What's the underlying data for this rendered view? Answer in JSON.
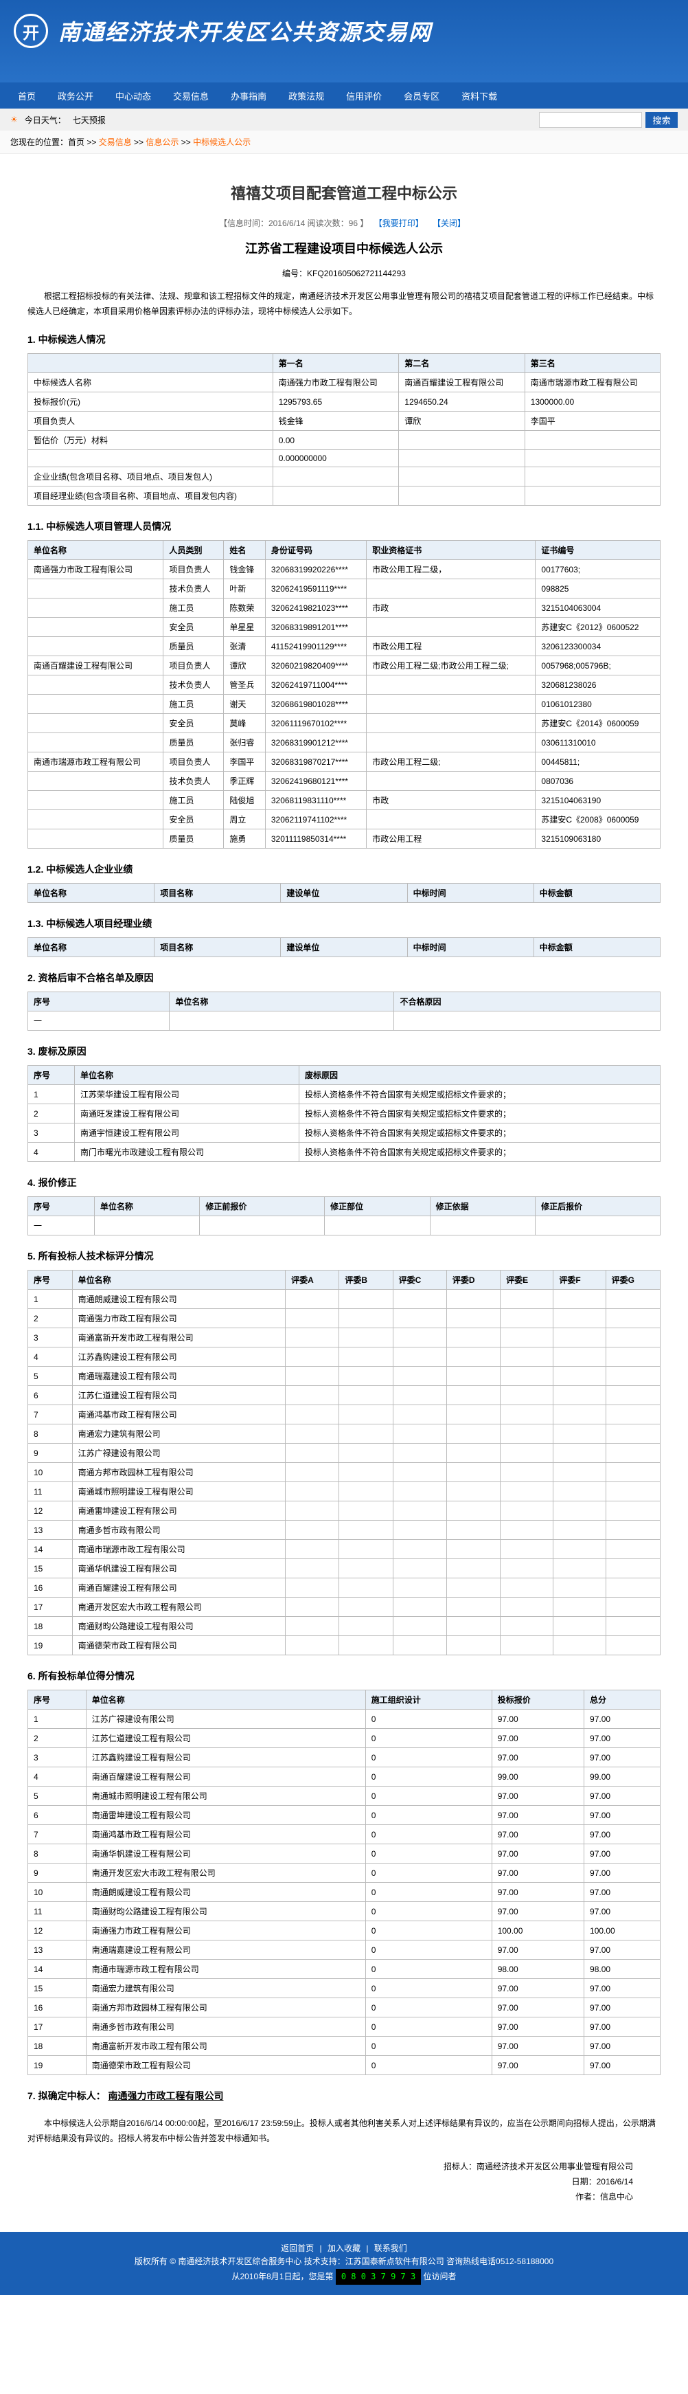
{
  "site": {
    "logo_text": "开",
    "title": "南通经济技术开发区公共资源交易网"
  },
  "nav": [
    "首页",
    "政务公开",
    "中心动态",
    "交易信息",
    "办事指南",
    "政策法规",
    "信用评价",
    "会员专区",
    "资料下载"
  ],
  "subbar": {
    "weather_label": "今日天气：",
    "forecast": "七天预报",
    "search_btn": "搜索"
  },
  "breadcrumb": {
    "prefix": "您现在的位置：首页",
    "path1": "交易信息",
    "path2": "信息公示",
    "path3": "中标候选人公示"
  },
  "article": {
    "title": "禧禧艾项目配套管道工程中标公示",
    "meta_date": "【信息时间：2016/6/14  阅读次数：96 】",
    "meta_print": "【我要打印】",
    "meta_close": "【关闭】",
    "subtitle": "江苏省工程建设项目中标候选人公示",
    "code": "编号：KFQ201605062721144293",
    "intro": "根据工程招标投标的有关法律、法规、规章和该工程招标文件的规定，南通经济技术开发区公用事业管理有限公司的禧禧艾项目配套管道工程的评标工作已经结束。中标候选人已经确定，本项目采用价格单因素评标办法的评标办法，现将中标候选人公示如下。"
  },
  "section1": {
    "title": "1. 中标候选人情况",
    "headers": [
      "",
      "第一名",
      "第二名",
      "第三名"
    ],
    "rows": [
      [
        "中标候选人名称",
        "南通强力市政工程有限公司",
        "南通百耀建设工程有限公司",
        "南通市瑞源市政工程有限公司"
      ],
      [
        "投标报价(元)",
        "1295793.65",
        "1294650.24",
        "1300000.00"
      ],
      [
        "项目负责人",
        "钱金锋",
        "谭欣",
        "李国平"
      ],
      [
        "暂估价（万元）材料",
        "0.00",
        "",
        " "
      ],
      [
        "",
        "0.000000000",
        " ",
        ""
      ],
      [
        "企业业绩(包含项目名称、项目地点、项目发包人)",
        " ",
        " ",
        " "
      ],
      [
        "项目经理业绩(包含项目名称、项目地点、项目发包内容)",
        " ",
        " ",
        " "
      ]
    ]
  },
  "section11": {
    "title": "1.1. 中标候选人项目管理人员情况",
    "headers": [
      "单位名称",
      "人员类别",
      "姓名",
      "身份证号码",
      "职业资格证书",
      "证书编号"
    ],
    "rows": [
      [
        "南通强力市政工程有限公司",
        "项目负责人",
        "钱金锋",
        "32068319920226****",
        "市政公用工程二级，",
        "00177603;"
      ],
      [
        "",
        "技术负责人",
        "叶新",
        "32062419591119****",
        "",
        "098825"
      ],
      [
        "",
        "施工员",
        "陈数荣",
        "32062419821023****",
        "市政",
        "3215104063004"
      ],
      [
        "",
        "安全员",
        "单星星",
        "32068319891201****",
        "",
        "苏建安C《2012》0600522"
      ],
      [
        "",
        "质量员",
        "张清",
        "41152419901129****",
        "市政公用工程",
        "3206123300034"
      ],
      [
        "南通百耀建设工程有限公司",
        "项目负责人",
        "谭欣",
        "32060219820409****",
        "市政公用工程二级;市政公用工程二级;",
        "0057968;005796B;"
      ],
      [
        "",
        "技术负责人",
        "管圣兵",
        "32062419711004****",
        "",
        "320681238026"
      ],
      [
        "",
        "施工员",
        "谢天",
        "32068619801028****",
        "",
        "01061012380"
      ],
      [
        "",
        "安全员",
        "莫峰",
        "32061119670102****",
        "",
        "苏建安C《2014》0600059"
      ],
      [
        "",
        "质量员",
        "张归睿",
        "32068319901212****",
        "",
        "030611310010"
      ],
      [
        "南通市瑞源市政工程有限公司",
        "项目负责人",
        "李国平",
        "32068319870217****",
        "市政公用工程二级;",
        "00445811;"
      ],
      [
        "",
        "技术负责人",
        "季正辉",
        "32062419680121****",
        "",
        "0807036"
      ],
      [
        "",
        "施工员",
        "陆俊旭",
        "32068119831110****",
        "市政",
        "3215104063190"
      ],
      [
        "",
        "安全员",
        "周立",
        "32062119741102****",
        "",
        "苏建安C《2008》0600059"
      ],
      [
        "",
        "质量员",
        "施勇",
        "32011119850314****",
        "市政公用工程",
        "3215109063180"
      ]
    ]
  },
  "section12": {
    "title": "1.2. 中标候选人企业业绩",
    "headers": [
      "单位名称",
      "项目名称",
      "建设单位",
      "中标时间",
      "中标金额"
    ]
  },
  "section13": {
    "title": "1.3. 中标候选人项目经理业绩",
    "headers": [
      "单位名称",
      "项目名称",
      "建设单位",
      "中标时间",
      "中标金额"
    ]
  },
  "section2": {
    "title": "2. 资格后审不合格名单及原因",
    "headers": [
      "序号",
      "单位名称",
      "不合格原因"
    ],
    "rows": [
      [
        "一",
        "",
        ""
      ]
    ]
  },
  "section3": {
    "title": "3. 废标及原因",
    "headers": [
      "序号",
      "单位名称",
      "废标原因"
    ],
    "rows": [
      [
        "1",
        "江苏荣华建设工程有限公司",
        "投标人资格条件不符合国家有关规定或招标文件要求的；"
      ],
      [
        "2",
        "南通旺发建设工程有限公司",
        "投标人资格条件不符合国家有关规定或招标文件要求的；"
      ],
      [
        "3",
        "南通宇恒建设工程有限公司",
        "投标人资格条件不符合国家有关规定或招标文件要求的；"
      ],
      [
        "4",
        "南门市曙光市政建设工程有限公司",
        "投标人资格条件不符合国家有关规定或招标文件要求的；"
      ]
    ]
  },
  "section4": {
    "title": "4. 报价修正",
    "headers": [
      "序号",
      "单位名称",
      "修正前报价",
      "修正部位",
      "修正依据",
      "修正后报价"
    ],
    "rows": [
      [
        "一",
        "",
        "",
        "",
        "",
        ""
      ]
    ]
  },
  "section5": {
    "title": "5. 所有投标人技术标评分情况",
    "headers": [
      "序号",
      "单位名称",
      "评委A",
      "评委B",
      "评委C",
      "评委D",
      "评委E",
      "评委F",
      "评委G"
    ],
    "rows": [
      [
        "1",
        "南通朗威建设工程有限公司",
        "",
        "",
        "",
        "",
        "",
        "",
        ""
      ],
      [
        "2",
        "南通强力市政工程有限公司",
        "",
        "",
        "",
        "",
        "",
        "",
        ""
      ],
      [
        "3",
        "南通富新开发市政工程有限公司",
        "",
        "",
        "",
        "",
        "",
        "",
        ""
      ],
      [
        "4",
        "江苏鑫购建设工程有限公司",
        "",
        "",
        "",
        "",
        "",
        "",
        ""
      ],
      [
        "5",
        "南通瑞嘉建设工程有限公司",
        "",
        "",
        "",
        "",
        "",
        "",
        ""
      ],
      [
        "6",
        "江苏仁道建设工程有限公司",
        "",
        "",
        "",
        "",
        "",
        "",
        ""
      ],
      [
        "7",
        "南通鸿基市政工程有限公司",
        "",
        "",
        "",
        "",
        "",
        "",
        ""
      ],
      [
        "8",
        "南通宏力建筑有限公司",
        "",
        "",
        "",
        "",
        "",
        "",
        ""
      ],
      [
        "9",
        "江苏广禄建设有限公司",
        "",
        "",
        "",
        "",
        "",
        "",
        ""
      ],
      [
        "10",
        "南通方邦市政园林工程有限公司",
        "",
        "",
        "",
        "",
        "",
        "",
        ""
      ],
      [
        "11",
        "南通城市照明建设工程有限公司",
        "",
        "",
        "",
        "",
        "",
        "",
        ""
      ],
      [
        "12",
        "南通雷坤建设工程有限公司",
        "",
        "",
        "",
        "",
        "",
        "",
        ""
      ],
      [
        "13",
        "南通多哲市政有限公司",
        "",
        "",
        "",
        "",
        "",
        "",
        ""
      ],
      [
        "14",
        "南通市瑞源市政工程有限公司",
        "",
        "",
        "",
        "",
        "",
        "",
        ""
      ],
      [
        "15",
        "南通华帆建设工程有限公司",
        "",
        "",
        "",
        "",
        "",
        "",
        ""
      ],
      [
        "16",
        "南通百耀建设工程有限公司",
        "",
        "",
        "",
        "",
        "",
        "",
        ""
      ],
      [
        "17",
        "南通开发区宏大市政工程有限公司",
        "",
        "",
        "",
        "",
        "",
        "",
        ""
      ],
      [
        "18",
        "南通财昀公路建设工程有限公司",
        "",
        "",
        "",
        "",
        "",
        "",
        ""
      ],
      [
        "19",
        "南通德荣市政工程有限公司",
        "",
        "",
        "",
        "",
        "",
        "",
        ""
      ]
    ]
  },
  "section6": {
    "title": "6. 所有投标单位得分情况",
    "headers": [
      "序号",
      "单位名称",
      "施工组织设计",
      "投标报价",
      "总分"
    ],
    "rows": [
      [
        "1",
        "江苏广禄建设有限公司",
        "0",
        "97.00",
        "97.00"
      ],
      [
        "2",
        "江苏仁道建设工程有限公司",
        "0",
        "97.00",
        "97.00"
      ],
      [
        "3",
        "江苏鑫购建设工程有限公司",
        "0",
        "97.00",
        "97.00"
      ],
      [
        "4",
        "南通百耀建设工程有限公司",
        "0",
        "99.00",
        "99.00"
      ],
      [
        "5",
        "南通城市照明建设工程有限公司",
        "0",
        "97.00",
        "97.00"
      ],
      [
        "6",
        "南通雷坤建设工程有限公司",
        "0",
        "97.00",
        "97.00"
      ],
      [
        "7",
        "南通鸿基市政工程有限公司",
        "0",
        "97.00",
        "97.00"
      ],
      [
        "8",
        "南通华帆建设工程有限公司",
        "0",
        "97.00",
        "97.00"
      ],
      [
        "9",
        "南通开发区宏大市政工程有限公司",
        "0",
        "97.00",
        "97.00"
      ],
      [
        "10",
        "南通朗威建设工程有限公司",
        "0",
        "97.00",
        "97.00"
      ],
      [
        "11",
        "南通财昀公路建设工程有限公司",
        "0",
        "97.00",
        "97.00"
      ],
      [
        "12",
        "南通强力市政工程有限公司",
        "0",
        "100.00",
        "100.00"
      ],
      [
        "13",
        "南通瑞嘉建设工程有限公司",
        "0",
        "97.00",
        "97.00"
      ],
      [
        "14",
        "南通市瑞源市政工程有限公司",
        "0",
        "98.00",
        "98.00"
      ],
      [
        "15",
        "南通宏力建筑有限公司",
        "0",
        "97.00",
        "97.00"
      ],
      [
        "16",
        "南通方邦市政园林工程有限公司",
        "0",
        "97.00",
        "97.00"
      ],
      [
        "17",
        "南通多哲市政有限公司",
        "0",
        "97.00",
        "97.00"
      ],
      [
        "18",
        "南通富新开发市政工程有限公司",
        "0",
        "97.00",
        "97.00"
      ],
      [
        "19",
        "南通德荣市政工程有限公司",
        "0",
        "97.00",
        "97.00"
      ]
    ]
  },
  "section7": {
    "title": "7. 拟确定中标人：",
    "winner": "南通强力市政工程有限公司",
    "notice": "本中标候选人公示期自2016/6/14 00:00:00起，至2016/6/17 23:59:59止。投标人或者其他利害关系人对上述评标结果有异议的，应当在公示期间向招标人提出，公示期满对评标结果没有异议的。招标人将发布中标公告并签发中标通知书。"
  },
  "signature": {
    "org": "招标人：南通经济技术开发区公用事业管理有限公司",
    "date": "日期：2016/6/14",
    "author": "作者：信息中心"
  },
  "footer": {
    "links": [
      "返回首页",
      "加入收藏",
      "联系我们"
    ],
    "line1": "版权所有 © 南通经济技术开发区综合服务中心   技术支持：江苏国泰新点软件有限公司   咨询热线电话0512-58188000",
    "line2_prefix": "从2010年8月1日起，您是第",
    "counter": "0 8 0 3 7 9 7 3",
    "line2_suffix": "位访问者"
  }
}
